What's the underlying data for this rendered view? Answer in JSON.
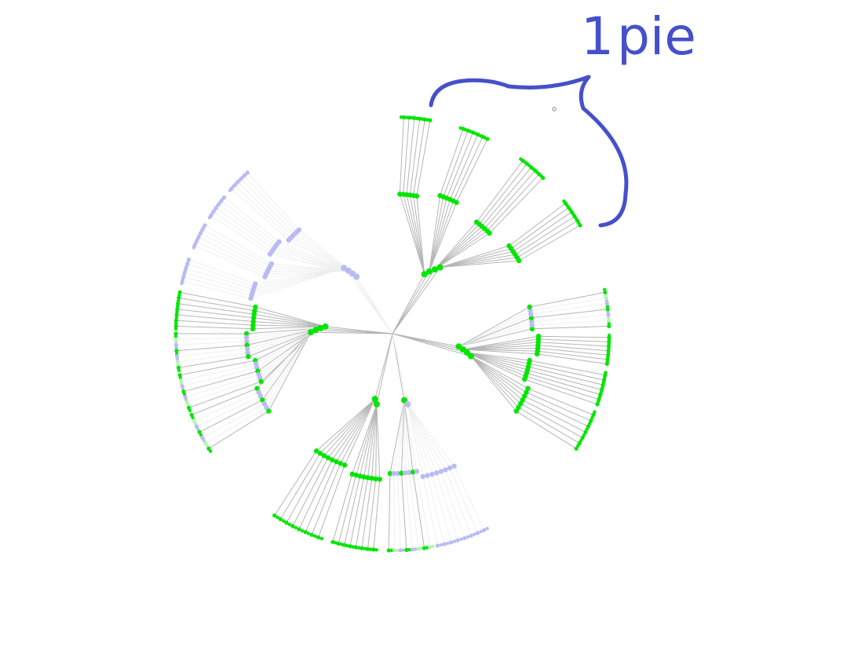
{
  "annotation": {
    "number": "1",
    "word": "pie"
  },
  "colors": {
    "selected": "#00e600",
    "selected_faded": "#b7f3b7",
    "unselected": "#b9bcf2",
    "link_selected": "#b5b5b5",
    "link_faded": "#eeeeee",
    "ink": "#4550c9"
  },
  "tree": {
    "type": "radial-tree",
    "depth": 3,
    "branches": [
      {
        "name": "top-left",
        "state": "unselected",
        "children": 4
      },
      {
        "name": "top-right",
        "state": "selected",
        "children": 4
      },
      {
        "name": "left",
        "state": "mixed",
        "children": 4
      },
      {
        "name": "right",
        "state": "mixed",
        "children": 4
      },
      {
        "name": "bottom-left",
        "state": "mixed",
        "children": 2
      },
      {
        "name": "bottom-right",
        "state": "unselected",
        "children": 2
      }
    ]
  }
}
